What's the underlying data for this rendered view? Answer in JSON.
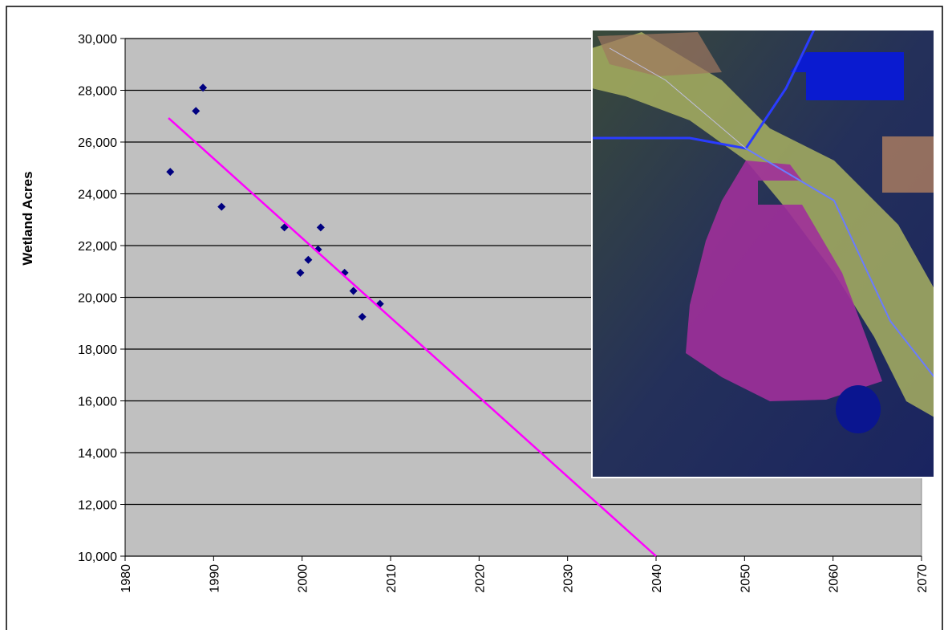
{
  "chart_data": {
    "type": "scatter",
    "y_label": "Wetland Acres",
    "xlim": [
      1980,
      2070
    ],
    "xticks": [
      1980,
      1990,
      2000,
      2010,
      2020,
      2030,
      2040,
      2050,
      2060,
      2070
    ],
    "ylim": [
      10000,
      30000
    ],
    "yticks": [
      {
        "value": 10000,
        "label": "10,000"
      },
      {
        "value": 12000,
        "label": "12,000"
      },
      {
        "value": 14000,
        "label": "14,000"
      },
      {
        "value": 16000,
        "label": "16,000"
      },
      {
        "value": 18000,
        "label": "18,000"
      },
      {
        "value": 20000,
        "label": "20,000"
      },
      {
        "value": 22000,
        "label": "22,000"
      },
      {
        "value": 24000,
        "label": "24,000"
      },
      {
        "value": 26000,
        "label": "26,000"
      },
      {
        "value": 28000,
        "label": "28,000"
      },
      {
        "value": 30000,
        "label": "30,000"
      }
    ],
    "grid": true,
    "series": [
      {
        "type": "scatter",
        "color": "#000080",
        "x": [
          1985.1,
          1988.0,
          1988.8,
          1990.9,
          1998.0,
          1999.8,
          2000.7,
          2001.8,
          2002.1,
          2004.8,
          2005.8,
          2006.8,
          2008.8
        ],
        "values": [
          24850,
          27200,
          28100,
          23500,
          22700,
          20950,
          21450,
          21850,
          22700,
          20950,
          20250,
          19250,
          19750
        ]
      },
      {
        "type": "line",
        "color": "#ff00ff",
        "x": [
          1984.9,
          2040.0
        ],
        "values": [
          26930,
          10000
        ]
      }
    ]
  }
}
